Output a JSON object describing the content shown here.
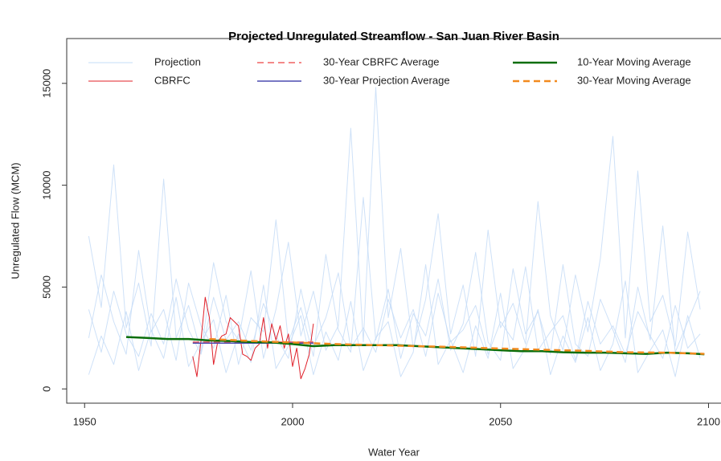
{
  "chart_data": {
    "type": "line",
    "title": "Projected Unregulated Streamflow - San Juan River Basin",
    "x_label": "Water Year",
    "y_label": "Unregulated Flow (MCM)",
    "xlim": [
      1945.7,
      2103
    ],
    "ylim": [
      -700,
      17200
    ],
    "xticks": [
      1950,
      2000,
      2050,
      2100
    ],
    "yticks": [
      0,
      5000,
      10000,
      15000
    ],
    "legend": "top",
    "series": [
      {
        "name": "Projection",
        "color": "#c6dcf7",
        "width": 1,
        "dash": false,
        "x": [
          1951,
          1954,
          1957,
          1960,
          1963,
          1966,
          1969,
          1972,
          1975,
          1978,
          1981,
          1984,
          1987,
          1990,
          1993,
          1996,
          1999,
          2002,
          2005,
          2008,
          2011,
          2014,
          2017,
          2020,
          2023,
          2026,
          2029,
          2032,
          2035,
          2038,
          2041,
          2044,
          2047,
          2050,
          2053,
          2056,
          2059,
          2062,
          2065,
          2068,
          2071,
          2074,
          2077,
          2080,
          2083,
          2086,
          2089,
          2092,
          2095,
          2098
        ],
        "values": [
          [
            7500,
            4000,
            11000,
            3000,
            5200,
            2100,
            10300,
            2500,
            4100,
            1800,
            6200,
            3300,
            2400,
            5800,
            1500,
            3900,
            7200,
            2600,
            4800,
            1900,
            3100,
            12800,
            2300,
            14800,
            3500,
            6900,
            2000,
            4400,
            8600,
            2700,
            5100,
            1600,
            7800,
            3000,
            4200,
            2200,
            9200,
            3600,
            1900,
            5600,
            2800,
            6400,
            12400,
            2500,
            10700,
            3300,
            4600,
            2100,
            7700,
            3900
          ],
          [
            700,
            2600,
            1200,
            3800,
            900,
            2900,
            1500,
            4500,
            1100,
            2300,
            3400,
            800,
            2700,
            1300,
            5100,
            1000,
            2100,
            3600,
            700,
            2800,
            1400,
            4300,
            900,
            2500,
            3300,
            600,
            1800,
            6100,
            1200,
            2400,
            800,
            3100,
            1500,
            4700,
            1000,
            2000,
            3900,
            700,
            2600,
            1300,
            3500,
            900,
            2200,
            5300,
            800,
            1900,
            2900,
            600,
            3600,
            1500
          ],
          [
            2500,
            5600,
            3300,
            1700,
            6800,
            2800,
            3900,
            1400,
            5200,
            3100,
            2000,
            4600,
            1200,
            3500,
            2800,
            8300,
            2300,
            4000,
            1600,
            6600,
            2900,
            1800,
            9400,
            2400,
            4900,
            1500,
            3700,
            2600,
            5400,
            1900,
            3200,
            6700,
            2300,
            1400,
            5900,
            2700,
            3800,
            1700,
            6100,
            2200,
            1600,
            4400,
            2900,
            1300,
            5000,
            2400,
            8000,
            1800,
            3300,
            4800
          ],
          [
            3900,
            1800,
            4800,
            2700,
            1600,
            3700,
            2200,
            5400,
            2900,
            1700,
            4500,
            2400,
            3300,
            1900,
            4200,
            2600,
            1500,
            4900,
            2100,
            3500,
            5700,
            2000,
            3000,
            1800,
            4400,
            2500,
            3900,
            1600,
            4700,
            2300,
            2900,
            4100,
            1700,
            3300,
            2400,
            6000,
            1900,
            2800,
            3600,
            1400,
            4300,
            2200,
            3100,
            1700,
            3800,
            2600,
            1500,
            4100,
            2000,
            2700
          ]
        ]
      },
      {
        "name": "CBRFC",
        "color": "#e0202a",
        "width": 1,
        "dash": false,
        "x": [
          1976,
          1977,
          1978,
          1979,
          1980,
          1981,
          1982,
          1983,
          1984,
          1985,
          1986,
          1987,
          1988,
          1989,
          1990,
          1991,
          1992,
          1993,
          1994,
          1995,
          1996,
          1997,
          1998,
          1999,
          2000,
          2001,
          2002,
          2003,
          2004,
          2005
        ],
        "values": [
          1600,
          600,
          2400,
          4500,
          3500,
          1200,
          2300,
          2600,
          2700,
          3500,
          3300,
          3100,
          1700,
          1600,
          1400,
          2000,
          2200,
          3500,
          2000,
          3200,
          2400,
          3100,
          2000,
          2700,
          1100,
          2000,
          500,
          1000,
          1700,
          3200
        ]
      },
      {
        "name": "30-Year CBRFC Average",
        "color": "#f06060",
        "width": 1.5,
        "dash": true,
        "x": [
          1976,
          2005
        ],
        "values": [
          2300,
          2300
        ]
      },
      {
        "name": "30-Year Projection Average",
        "color": "#4b4bb0",
        "width": 1.5,
        "dash": false,
        "x": [
          1976,
          2005
        ],
        "values": [
          2250,
          2250
        ]
      },
      {
        "name": "10-Year Moving Average",
        "color": "#0a6e0a",
        "width": 2.5,
        "dash": false,
        "x": [
          1960,
          1965,
          1970,
          1975,
          1980,
          1985,
          1990,
          1995,
          2000,
          2005,
          2010,
          2015,
          2020,
          2025,
          2030,
          2035,
          2040,
          2045,
          2050,
          2055,
          2060,
          2065,
          2070,
          2075,
          2080,
          2085,
          2090,
          2095,
          2099
        ],
        "values": [
          2550,
          2500,
          2450,
          2450,
          2380,
          2350,
          2300,
          2280,
          2200,
          2100,
          2150,
          2150,
          2150,
          2150,
          2100,
          2050,
          2000,
          1950,
          1900,
          1850,
          1850,
          1800,
          1780,
          1780,
          1750,
          1720,
          1780,
          1750,
          1700
        ]
      },
      {
        "name": "30-Year Moving Average",
        "color": "#f28a1e",
        "width": 2.5,
        "dash": true,
        "x": [
          1980,
          1990,
          2000,
          2010,
          2020,
          2030,
          2040,
          2050,
          2060,
          2070,
          2080,
          2090,
          2099
        ],
        "values": [
          2450,
          2350,
          2280,
          2200,
          2150,
          2100,
          2050,
          1980,
          1920,
          1870,
          1800,
          1780,
          1720
        ]
      }
    ]
  }
}
